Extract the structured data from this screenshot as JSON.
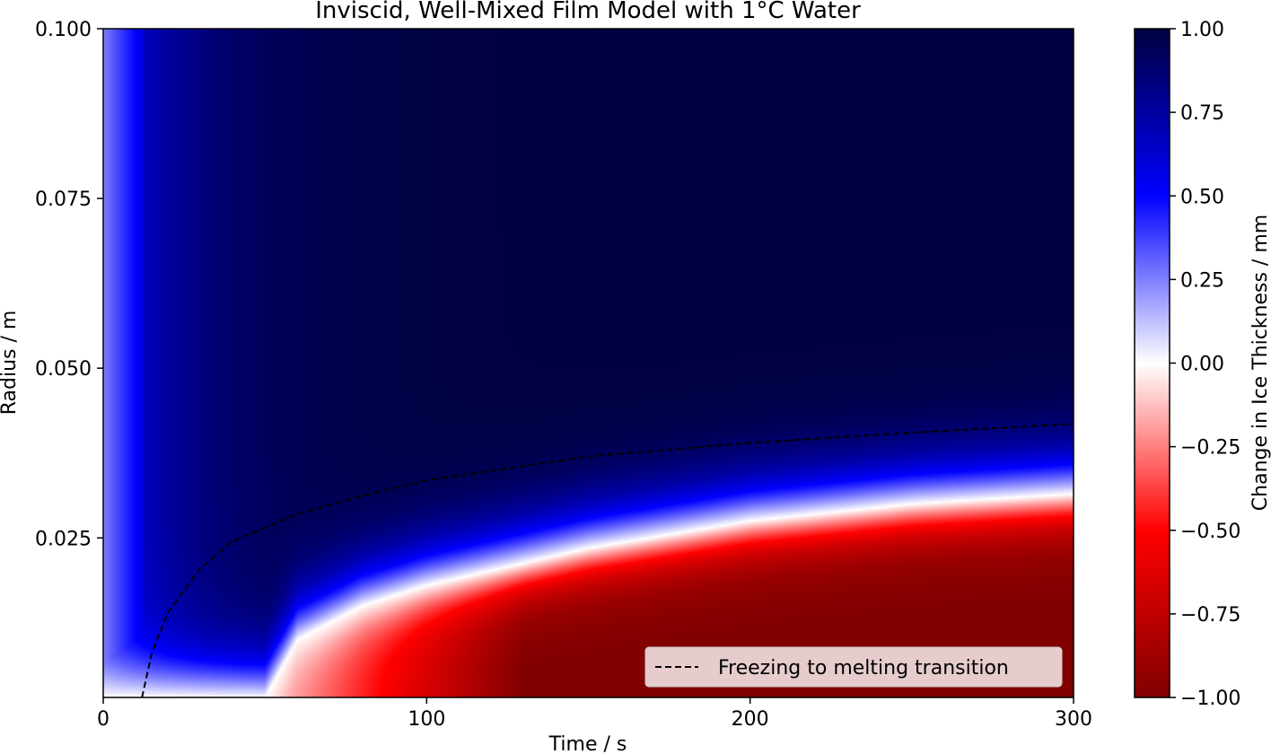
{
  "chart_data": {
    "type": "heatmap",
    "title": "Inviscid, Well-Mixed Film Model with 1$^\\circ$C Water",
    "title_display": "Inviscid, Well-Mixed Film Model with 1°C Water",
    "xlabel": "Time / s",
    "ylabel": "Radius / m",
    "xlim": [
      0,
      300
    ],
    "ylim": [
      0.0015,
      0.1
    ],
    "x_ticks": [
      0,
      100,
      200,
      300
    ],
    "x_tick_labels": [
      "0",
      "100",
      "200",
      "300"
    ],
    "y_ticks": [
      0.025,
      0.05,
      0.075,
      0.1
    ],
    "y_tick_labels": [
      "0.025",
      "0.050",
      "0.075",
      "0.100"
    ],
    "colorbar": {
      "label": "Change in Ice Thickness / mm",
      "colormap": "seismic_r",
      "vmin": -1.0,
      "vmax": 1.0,
      "ticks": [
        1.0,
        0.75,
        0.5,
        0.25,
        0.0,
        -0.25,
        -0.5,
        -0.75,
        -1.0
      ],
      "tick_labels": [
        "1.00",
        "0.75",
        "0.50",
        "0.25",
        "0.00",
        "−0.25",
        "−0.50",
        "−0.75",
        "−1.00"
      ],
      "colors": [
        "#000040",
        "#0000ff",
        "#ffffff",
        "#ff0000",
        "#800000"
      ]
    },
    "zero_contour": [
      {
        "x": 50,
        "y": 0.0015
      },
      {
        "x": 60,
        "y": 0.01
      },
      {
        "x": 80,
        "y": 0.015
      },
      {
        "x": 100,
        "y": 0.018
      },
      {
        "x": 150,
        "y": 0.0235
      },
      {
        "x": 200,
        "y": 0.0275
      },
      {
        "x": 250,
        "y": 0.03
      },
      {
        "x": 300,
        "y": 0.0315
      }
    ],
    "series": [
      {
        "name": "Freezing to melting transition",
        "style": "dashed",
        "color": "#000000",
        "points": [
          {
            "x": 12,
            "y": 0.0015
          },
          {
            "x": 15,
            "y": 0.008
          },
          {
            "x": 20,
            "y": 0.014
          },
          {
            "x": 30,
            "y": 0.0205
          },
          {
            "x": 40,
            "y": 0.0245
          },
          {
            "x": 60,
            "y": 0.0285
          },
          {
            "x": 80,
            "y": 0.0312
          },
          {
            "x": 100,
            "y": 0.0335
          },
          {
            "x": 150,
            "y": 0.037
          },
          {
            "x": 200,
            "y": 0.039
          },
          {
            "x": 250,
            "y": 0.0405
          },
          {
            "x": 300,
            "y": 0.0418
          }
        ]
      }
    ],
    "legend": {
      "placement": "lower-right",
      "entries": [
        "Freezing to melting transition"
      ]
    }
  }
}
